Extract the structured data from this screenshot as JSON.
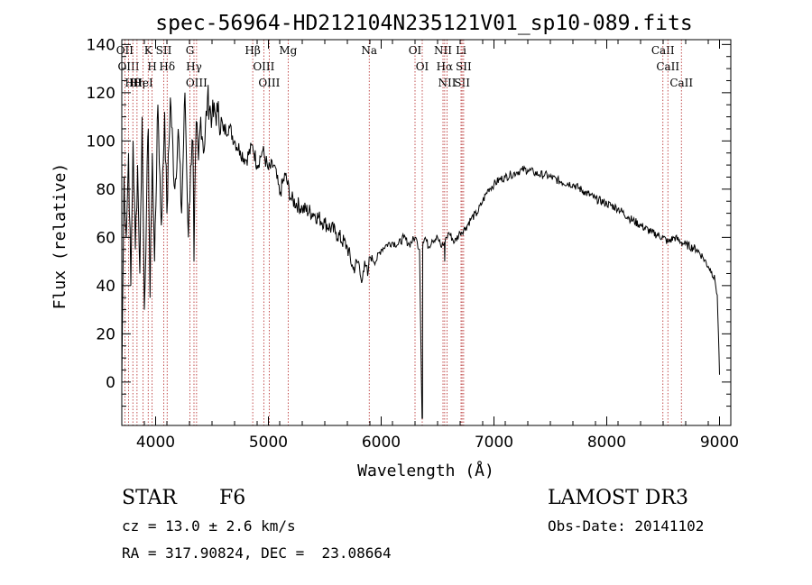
{
  "chart_data": {
    "type": "line",
    "title": "spec-56964-HD212104N235121V01_sp10-089.fits",
    "xlabel": "Wavelength (Å)",
    "ylabel": "Flux (relative)",
    "xlim": [
      3700,
      9100
    ],
    "ylim": [
      -18,
      142
    ],
    "xticks": [
      4000,
      5000,
      6000,
      7000,
      8000,
      9000
    ],
    "yticks": [
      0,
      20,
      40,
      60,
      80,
      100,
      120,
      140
    ],
    "grid": false,
    "series": [
      {
        "name": "spectrum",
        "x": [
          3700,
          3720,
          3740,
          3760,
          3780,
          3800,
          3820,
          3840,
          3860,
          3880,
          3900,
          3920,
          3935,
          3950,
          3970,
          3990,
          4020,
          4050,
          4080,
          4100,
          4130,
          4170,
          4200,
          4230,
          4260,
          4290,
          4310,
          4330,
          4340,
          4360,
          4380,
          4400,
          4430,
          4460,
          4500,
          4550,
          4600,
          4650,
          4700,
          4750,
          4800,
          4861,
          4900,
          4950,
          5000,
          5050,
          5100,
          5150,
          5200,
          5300,
          5400,
          5500,
          5600,
          5700,
          5750,
          5800,
          5820,
          5840,
          5860,
          5880,
          5900,
          5950,
          6000,
          6050,
          6100,
          6150,
          6200,
          6250,
          6300,
          6320,
          6340,
          6362,
          6364,
          6366,
          6368,
          6370,
          6390,
          6420,
          6450,
          6500,
          6530,
          6560,
          6563,
          6566,
          6580,
          6600,
          6650,
          6700,
          6750,
          6800,
          6850,
          6900,
          6950,
          7000,
          7050,
          7100,
          7150,
          7200,
          7250,
          7300,
          7350,
          7400,
          7450,
          7500,
          7600,
          7700,
          7800,
          7900,
          8000,
          8100,
          8200,
          8300,
          8400,
          8500,
          8542,
          8600,
          8662,
          8700,
          8800,
          8850,
          8900,
          8930,
          8960,
          8980,
          8990,
          9000
        ],
        "y": [
          0,
          85,
          60,
          95,
          40,
          100,
          55,
          90,
          45,
          110,
          30,
          75,
          105,
          35,
          95,
          50,
          115,
          65,
          112,
          70,
          118,
          80,
          105,
          70,
          120,
          60,
          90,
          100,
          50,
          108,
          92,
          110,
          96,
          118,
          110,
          112,
          104,
          106,
          100,
          96,
          92,
          98,
          90,
          96,
          88,
          90,
          78,
          86,
          76,
          72,
          70,
          66,
          62,
          56,
          47,
          50,
          43,
          46,
          48,
          44,
          52,
          50,
          55,
          57,
          58,
          57,
          60,
          57,
          60,
          58,
          55,
          -15,
          -15,
          -15,
          55,
          58,
          60,
          56,
          59,
          60,
          56,
          58,
          50,
          58,
          60,
          62,
          58,
          62,
          64,
          68,
          70,
          75,
          80,
          82,
          84,
          85,
          86,
          87,
          88,
          88,
          87,
          86,
          86,
          85,
          83,
          82,
          79,
          76,
          74,
          72,
          68,
          65,
          62,
          60,
          58,
          60,
          58,
          57,
          55,
          52,
          48,
          46,
          42,
          36,
          20,
          3
        ]
      }
    ],
    "spectral_lines": [
      {
        "name": "Hθ",
        "wavelength": 3798
      },
      {
        "name": "OII",
        "wavelength": 3727
      },
      {
        "name": "OIII",
        "wavelength": 3760
      },
      {
        "name": "Hη",
        "wavelength": 3835
      },
      {
        "name": "HeI",
        "wavelength": 3889
      },
      {
        "name": "K",
        "wavelength": 3934
      },
      {
        "name": "H",
        "wavelength": 3969
      },
      {
        "name": "SII",
        "wavelength": 4072
      },
      {
        "name": "Hδ",
        "wavelength": 4102
      },
      {
        "name": "G",
        "wavelength": 4304
      },
      {
        "name": "Hγ",
        "wavelength": 4340
      },
      {
        "name": "OIII",
        "wavelength": 4363
      },
      {
        "name": "Hβ",
        "wavelength": 4861
      },
      {
        "name": "OIII",
        "wavelength": 4959
      },
      {
        "name": "OIII",
        "wavelength": 5007
      },
      {
        "name": "Mg",
        "wavelength": 5175
      },
      {
        "name": "Na",
        "wavelength": 5894
      },
      {
        "name": "OI",
        "wavelength": 6300
      },
      {
        "name": "OI",
        "wavelength": 6364
      },
      {
        "name": "NII",
        "wavelength": 6548
      },
      {
        "name": "Hα",
        "wavelength": 6563
      },
      {
        "name": "NII",
        "wavelength": 6584
      },
      {
        "name": "Li",
        "wavelength": 6708
      },
      {
        "name": "SII",
        "wavelength": 6717
      },
      {
        "name": "SII",
        "wavelength": 6731
      },
      {
        "name": "CaII",
        "wavelength": 8498
      },
      {
        "name": "CaII",
        "wavelength": 8542
      },
      {
        "name": "CaII",
        "wavelength": 8662
      }
    ]
  },
  "info": {
    "class_label": "STAR",
    "subclass": "F6",
    "survey": "LAMOST DR3",
    "cz": "cz = 13.0 ± 2.6 km/s",
    "obs_date": "Obs-Date: 20141102",
    "coords": "RA = 317.90824, DEC =  23.08664"
  }
}
